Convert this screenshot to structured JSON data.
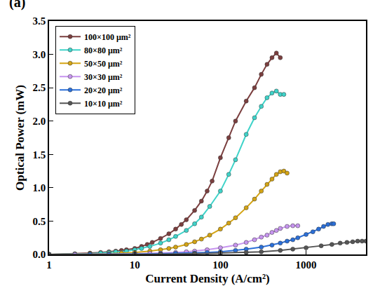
{
  "chart_data": {
    "type": "line",
    "x_label": "Current Density (A/cm²)",
    "y_label": "Optical Power (mW)",
    "annotations": [
      "(a)"
    ],
    "log": "x",
    "grid": false,
    "legend": "upper left",
    "marker": "circle",
    "line_style": "solid",
    "xlim": [
      1,
      5000
    ],
    "xticks": [
      1,
      10,
      100,
      1000
    ],
    "ylim": [
      0,
      3.5
    ],
    "yticks": [
      {
        "value": 0,
        "label": "0.0"
      },
      0.5,
      {
        "value": 1,
        "label": "1.0"
      },
      1.5,
      {
        "value": 2,
        "label": "2.0"
      },
      2.5,
      {
        "value": 3,
        "label": "3.0"
      },
      3.5
    ],
    "series": [
      {
        "name": "100×100 μm²",
        "color": "#7b3f3f",
        "x": [
          1,
          2,
          3,
          4,
          5,
          6,
          7,
          8,
          10,
          12,
          14,
          16,
          20,
          25,
          30,
          35,
          40,
          50,
          60,
          70,
          80,
          100,
          125,
          150,
          200,
          250,
          300,
          350,
          400,
          450,
          500
        ],
        "values": [
          0,
          0.01,
          0.02,
          0.03,
          0.04,
          0.05,
          0.06,
          0.07,
          0.09,
          0.12,
          0.15,
          0.18,
          0.24,
          0.31,
          0.38,
          0.45,
          0.52,
          0.66,
          0.8,
          0.95,
          1.1,
          1.45,
          1.75,
          2.0,
          2.3,
          2.5,
          2.7,
          2.85,
          2.95,
          3.02,
          2.95
        ]
      },
      {
        "name": "80×80 μm²",
        "color": "#3fd3c9",
        "x": [
          1,
          2,
          3,
          4,
          5,
          6,
          8,
          10,
          12,
          15,
          20,
          25,
          30,
          40,
          50,
          60,
          75,
          100,
          125,
          150,
          200,
          250,
          300,
          350,
          400,
          450,
          500,
          550
        ],
        "values": [
          0,
          0.005,
          0.01,
          0.02,
          0.03,
          0.04,
          0.05,
          0.07,
          0.09,
          0.12,
          0.17,
          0.22,
          0.27,
          0.36,
          0.46,
          0.56,
          0.72,
          0.95,
          1.2,
          1.42,
          1.8,
          2.05,
          2.22,
          2.35,
          2.42,
          2.45,
          2.4,
          2.4
        ]
      },
      {
        "name": "50×50 μm²",
        "color": "#d4a414",
        "x": [
          1,
          2,
          3,
          5,
          7,
          10,
          15,
          20,
          25,
          30,
          40,
          50,
          60,
          75,
          100,
          125,
          150,
          200,
          250,
          300,
          350,
          400,
          450,
          500,
          550,
          600
        ],
        "values": [
          0,
          0,
          0.005,
          0.01,
          0.02,
          0.03,
          0.05,
          0.07,
          0.09,
          0.11,
          0.15,
          0.19,
          0.23,
          0.29,
          0.38,
          0.47,
          0.55,
          0.7,
          0.83,
          0.95,
          1.05,
          1.13,
          1.2,
          1.24,
          1.25,
          1.22
        ]
      },
      {
        "name": "30×30 μm²",
        "color": "#c795ef",
        "x": [
          1,
          2,
          3,
          5,
          10,
          15,
          20,
          30,
          40,
          50,
          70,
          100,
          150,
          200,
          250,
          300,
          350,
          400,
          450,
          500,
          600,
          700,
          800
        ],
        "values": [
          0,
          0,
          0,
          0.005,
          0.01,
          0.015,
          0.02,
          0.03,
          0.04,
          0.05,
          0.07,
          0.1,
          0.14,
          0.18,
          0.22,
          0.26,
          0.29,
          0.33,
          0.36,
          0.39,
          0.42,
          0.43,
          0.43
        ]
      },
      {
        "name": "20×20 μm²",
        "color": "#2b6fd8",
        "x": [
          1,
          3,
          5,
          10,
          20,
          30,
          50,
          70,
          100,
          150,
          200,
          300,
          400,
          500,
          600,
          700,
          800,
          1000,
          1200,
          1400,
          1600,
          1800,
          2000,
          2100
        ],
        "values": [
          0,
          0,
          0,
          0.005,
          0.01,
          0.015,
          0.02,
          0.03,
          0.04,
          0.06,
          0.08,
          0.11,
          0.14,
          0.17,
          0.2,
          0.22,
          0.25,
          0.3,
          0.34,
          0.38,
          0.42,
          0.45,
          0.46,
          0.46
        ]
      },
      {
        "name": "10×10 μm²",
        "color": "#555555",
        "x": [
          1,
          10,
          20,
          50,
          100,
          200,
          300,
          500,
          700,
          1000,
          1500,
          2000,
          2500,
          3000,
          3500,
          4000,
          4500,
          5000
        ],
        "values": [
          0,
          0,
          0.003,
          0.01,
          0.02,
          0.03,
          0.04,
          0.06,
          0.08,
          0.1,
          0.13,
          0.15,
          0.17,
          0.18,
          0.19,
          0.2,
          0.2,
          0.2
        ]
      }
    ]
  }
}
